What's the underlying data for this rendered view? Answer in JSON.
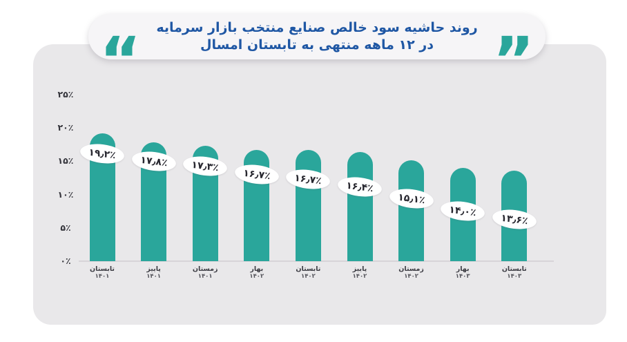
{
  "title": {
    "line1": "روند حاشیه سود خالص صنایع منتخب بازار سرمایه",
    "line2": "در ۱۲ ماهه منتهی به تابستان امسال",
    "quote_open": "“",
    "quote_close": "”"
  },
  "colors": {
    "bar_teal": "#2aa69b",
    "card_background": "#e9e8ea",
    "title_blue": "#1f57a4",
    "value_label_text": "#27272f",
    "axis_text": "#35353c"
  },
  "chart_data": {
    "type": "bar",
    "title": "روند حاشیه سود خالص صنایع منتخب بازار سرمایه در ۱۲ ماهه منتهی به تابستان امسال",
    "unit": "%",
    "categories": [
      {
        "season": "تابستان",
        "year": "۱۴۰۱"
      },
      {
        "season": "پاییز",
        "year": "۱۴۰۱"
      },
      {
        "season": "زمستان",
        "year": "۱۴۰۱"
      },
      {
        "season": "بهار",
        "year": "۱۴۰۲"
      },
      {
        "season": "تابستان",
        "year": "۱۴۰۲"
      },
      {
        "season": "پاییز",
        "year": "۱۴۰۲"
      },
      {
        "season": "زمستان",
        "year": "۱۴۰۲"
      },
      {
        "season": "بهار",
        "year": "۱۴۰۳"
      },
      {
        "season": "تابستان",
        "year": "۱۴۰۳"
      }
    ],
    "values": [
      19.2,
      17.8,
      17.3,
      16.7,
      16.7,
      16.4,
      15.1,
      14.0,
      13.6
    ],
    "value_labels": [
      "۱۹٫۲٪",
      "۱۷٫۸٪",
      "۱۷٫۳٪",
      "۱۶٫۷٪",
      "۱۶٫۷٪",
      "۱۶٫۴٪",
      "۱۵٫۱٪",
      "۱۴٫۰٪",
      "۱۳٫۶٪"
    ],
    "yticks": [
      {
        "value": 25,
        "label": "۲۵٪"
      },
      {
        "value": 20,
        "label": "۲۰٪"
      },
      {
        "value": 15,
        "label": "۱۵٪"
      },
      {
        "value": 10,
        "label": "۱۰٪"
      },
      {
        "value": 5,
        "label": "۵٪"
      },
      {
        "value": 0,
        "label": "۰٪"
      }
    ],
    "ylim": [
      0,
      25
    ],
    "xlabel": "",
    "ylabel": "",
    "grid": false,
    "legend": false
  }
}
